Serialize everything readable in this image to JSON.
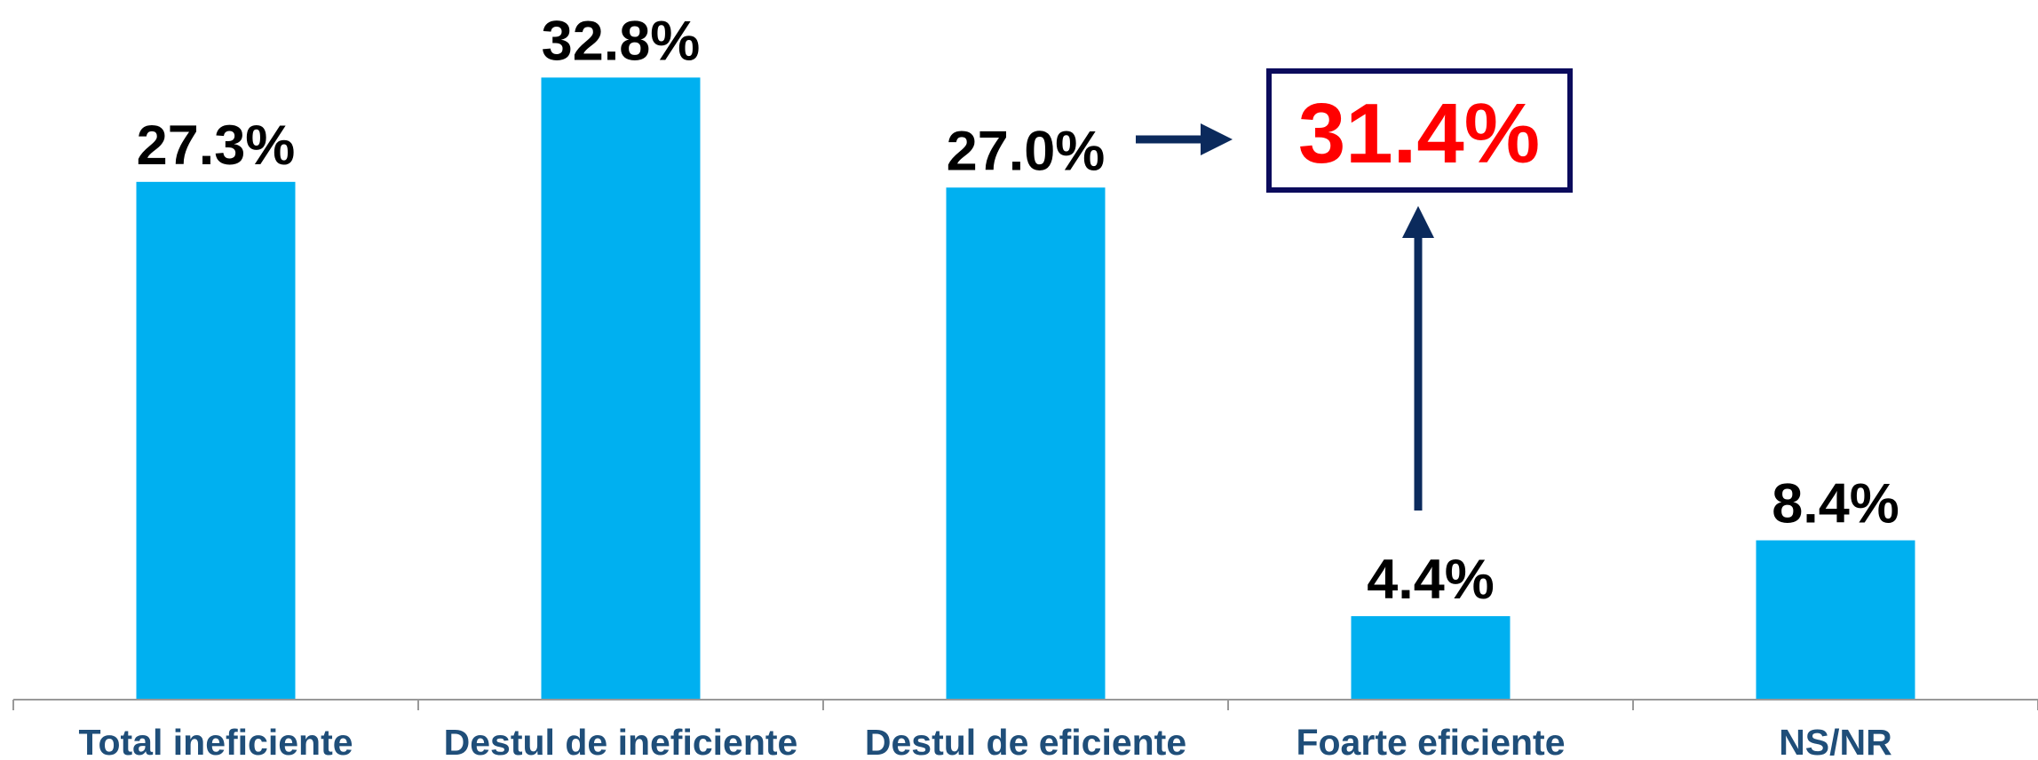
{
  "chart_data": {
    "type": "bar",
    "categories": [
      "Total ineficiente",
      "Destul de ineficiente",
      "Destul de eficiente",
      "Foarte eficiente",
      "NS/NR"
    ],
    "values": [
      27.3,
      32.8,
      27.0,
      4.4,
      8.4
    ],
    "value_labels": [
      "27.3%",
      "32.8%",
      "27.0%",
      "4.4%",
      "8.4%"
    ],
    "color": "#00b0f0",
    "ylim": [
      0,
      36
    ],
    "annotations": [
      {
        "text": "31.4%",
        "color": "#ff0000"
      }
    ]
  }
}
